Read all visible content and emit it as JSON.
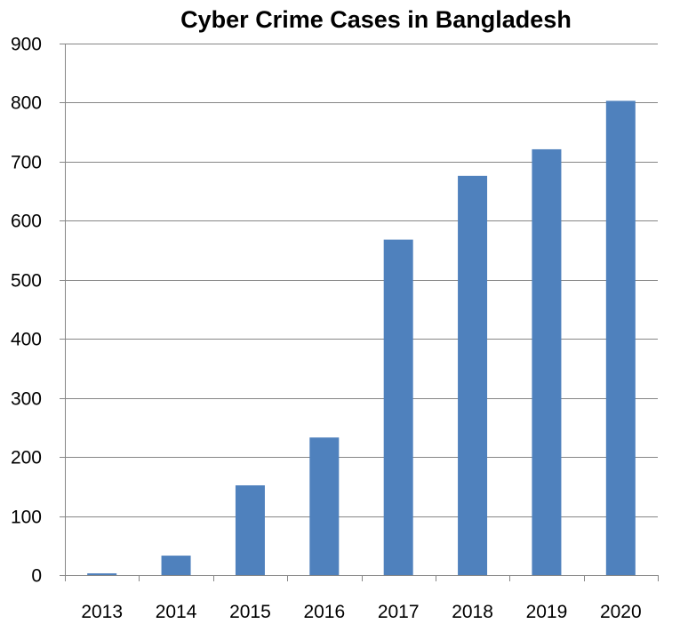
{
  "chart_data": {
    "type": "bar",
    "title": "Cyber Crime Cases in Bangladesh",
    "xlabel": "",
    "ylabel": "",
    "categories": [
      "2013",
      "2014",
      "2015",
      "2016",
      "2017",
      "2018",
      "2019",
      "2020"
    ],
    "values": [
      3,
      33,
      152,
      233,
      568,
      676,
      721,
      803
    ],
    "ylim": [
      0,
      900
    ],
    "yticks": [
      0,
      100,
      200,
      300,
      400,
      500,
      600,
      700,
      800,
      900
    ],
    "grid": true,
    "legend": "none",
    "bar_color": "#4f81bd",
    "grid_color": "#868686",
    "axis_color": "#868686"
  }
}
